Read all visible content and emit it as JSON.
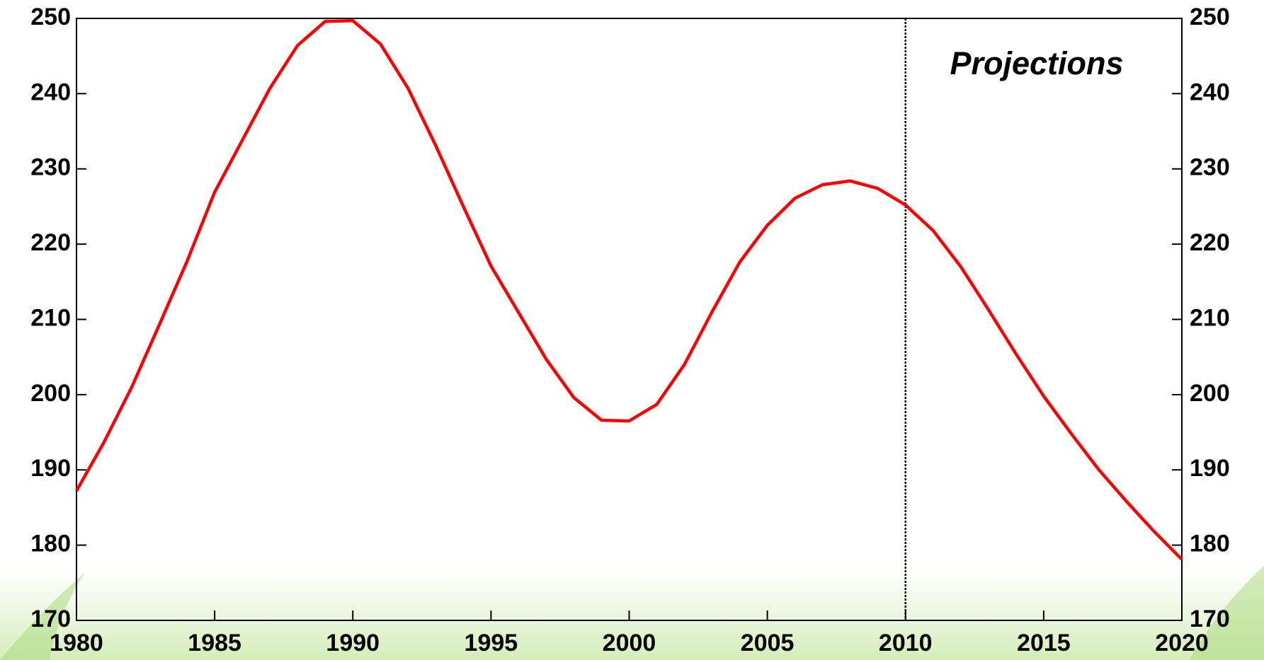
{
  "chart_data": {
    "type": "line",
    "annotation": "Projections",
    "divider_x": 2010,
    "x": [
      1980,
      1981,
      1982,
      1983,
      1984,
      1985,
      1986,
      1987,
      1988,
      1989,
      1990,
      1991,
      1992,
      1993,
      1994,
      1995,
      1996,
      1997,
      1998,
      1999,
      2000,
      2001,
      2002,
      2003,
      2004,
      2005,
      2006,
      2007,
      2008,
      2009,
      2010,
      2011,
      2012,
      2013,
      2014,
      2015,
      2016,
      2017,
      2018,
      2019,
      2020
    ],
    "series": [
      {
        "color": "#ff0000",
        "values": [
          187.2,
          193.7,
          201,
          209.3,
          217.7,
          226.9,
          233.8,
          240.7,
          246.4,
          249.6,
          249.7,
          246.6,
          240.7,
          233.1,
          225,
          217.1,
          210.9,
          204.7,
          199.6,
          196.6,
          196.5,
          198.7,
          204,
          211,
          217.6,
          222.5,
          226.1,
          227.9,
          228.4,
          227.4,
          225.2,
          221.8,
          217,
          211.3,
          205.4,
          199.8,
          194.8,
          190,
          185.8,
          181.8,
          178.1
        ]
      }
    ],
    "xlim": [
      1980,
      2020
    ],
    "xticks": [
      1980,
      1985,
      1990,
      1995,
      2000,
      2005,
      2010,
      2015,
      2020
    ],
    "ylim": [
      170,
      250
    ],
    "yticks": [
      170,
      180,
      190,
      200,
      210,
      220,
      230,
      240,
      250
    ],
    "y2lim": [
      170,
      250
    ],
    "y2ticks": [
      170,
      180,
      190,
      200,
      210,
      220,
      230,
      240,
      250
    ]
  }
}
